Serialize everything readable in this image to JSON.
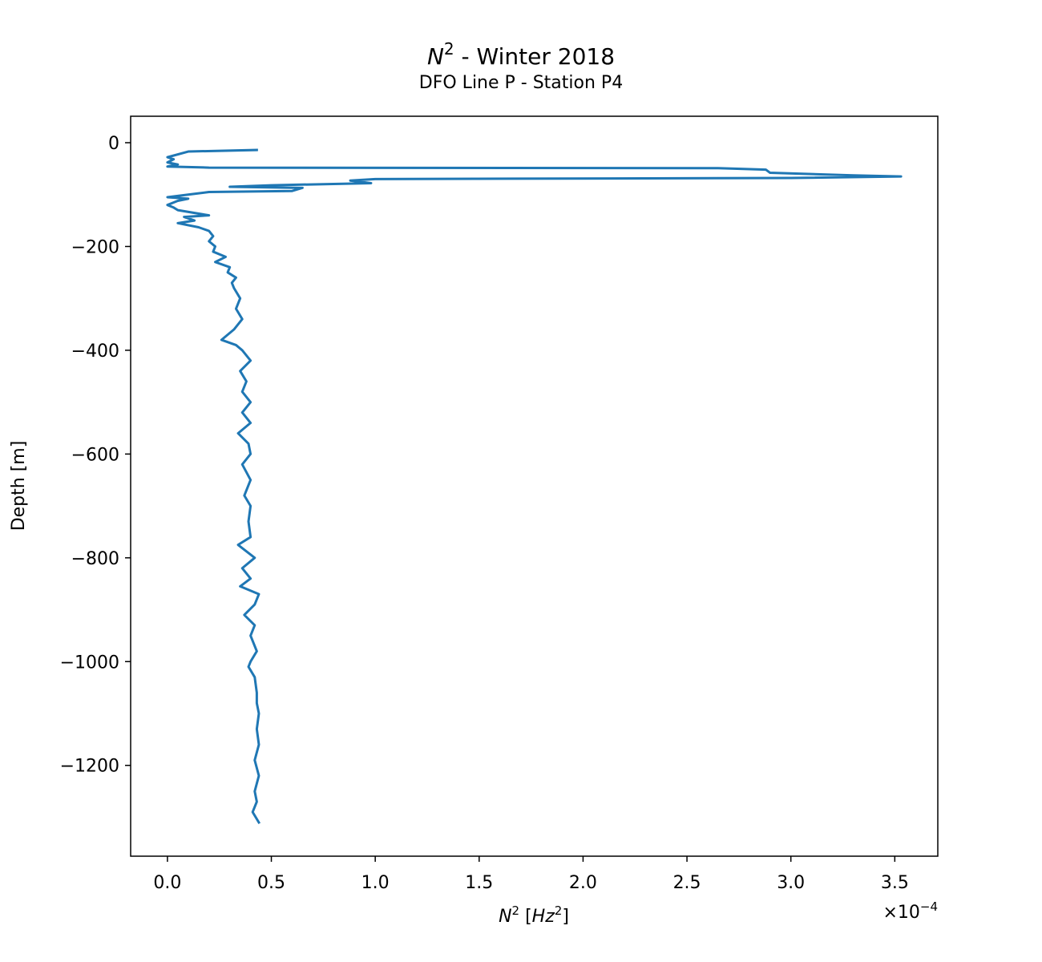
{
  "chart_data": {
    "type": "line",
    "title": [
      {
        "text": "N",
        "italic": true
      },
      {
        "text": "2",
        "sup": true
      },
      {
        "text": " - Winter 2018"
      }
    ],
    "subtitle": "DFO Line P - Station P4",
    "xlabel": [
      {
        "text": "N",
        "italic": true
      },
      {
        "text": "2",
        "sup": true
      },
      {
        "text": " ["
      },
      {
        "text": "Hz",
        "italic": true
      },
      {
        "text": "2",
        "sup": true
      },
      {
        "text": "]"
      }
    ],
    "ylabel": "Depth [m]",
    "x_offset": [
      {
        "text": "×10"
      },
      {
        "text": "−4",
        "sup": true
      }
    ],
    "xlim": [
      -0.177,
      3.707
    ],
    "ylim": [
      -1375,
      51
    ],
    "xticks": [
      {
        "value": 0,
        "label": "0.0"
      },
      {
        "value": 0.5,
        "label": "0.5"
      },
      {
        "value": 1,
        "label": "1.0"
      },
      {
        "value": 1.5,
        "label": "1.5"
      },
      {
        "value": 2,
        "label": "2.0"
      },
      {
        "value": 2.5,
        "label": "2.5"
      },
      {
        "value": 3,
        "label": "3.0"
      },
      {
        "value": 3.5,
        "label": "3.5"
      }
    ],
    "yticks": [
      0,
      {
        "value": -200,
        "label": "−200"
      },
      {
        "value": -400,
        "label": "−400"
      },
      {
        "value": -600,
        "label": "−600"
      },
      {
        "value": -800,
        "label": "−800"
      },
      {
        "value": -1000,
        "label": "−1000"
      },
      {
        "value": -1200,
        "label": "−1200"
      }
    ],
    "grid": false,
    "series": [
      {
        "color": "#1f77b4",
        "x": [
          0.43,
          0.1,
          0.0,
          0.03,
          0.0,
          0.05,
          0.0,
          0.2,
          2.65,
          2.88,
          2.9,
          3.3,
          3.53,
          3.0,
          1.0,
          0.88,
          0.98,
          0.5,
          0.3,
          0.65,
          0.6,
          0.2,
          0.1,
          0.0,
          0.1,
          0.05,
          0.0,
          0.03,
          0.05,
          0.2,
          0.08,
          0.13,
          0.05,
          0.15,
          0.2,
          0.22,
          0.2,
          0.23,
          0.22,
          0.28,
          0.23,
          0.3,
          0.29,
          0.33,
          0.31,
          0.32,
          0.35,
          0.33,
          0.36,
          0.32,
          0.26,
          0.33,
          0.36,
          0.4,
          0.35,
          0.38,
          0.36,
          0.4,
          0.36,
          0.4,
          0.34,
          0.39,
          0.4,
          0.36,
          0.4,
          0.37,
          0.4,
          0.39,
          0.4,
          0.34,
          0.42,
          0.36,
          0.4,
          0.35,
          0.44,
          0.42,
          0.37,
          0.42,
          0.4,
          0.43,
          0.4,
          0.39,
          0.42,
          0.43,
          0.43,
          0.44,
          0.43,
          0.44,
          0.42,
          0.44,
          0.42,
          0.43,
          0.41,
          0.44
        ],
        "values": [
          -14,
          -17,
          -28,
          -32,
          -38,
          -42,
          -46,
          -48,
          -49,
          -52,
          -58,
          -63,
          -65,
          -68,
          -70,
          -73,
          -78,
          -82,
          -85,
          -87,
          -93,
          -95,
          -100,
          -105,
          -108,
          -112,
          -120,
          -125,
          -130,
          -140,
          -143,
          -150,
          -155,
          -163,
          -170,
          -180,
          -190,
          -200,
          -210,
          -220,
          -230,
          -240,
          -250,
          -260,
          -270,
          -280,
          -300,
          -320,
          -340,
          -360,
          -380,
          -390,
          -400,
          -420,
          -440,
          -460,
          -480,
          -500,
          -520,
          -540,
          -560,
          -580,
          -600,
          -620,
          -650,
          -680,
          -700,
          -730,
          -760,
          -775,
          -800,
          -820,
          -840,
          -855,
          -870,
          -890,
          -910,
          -930,
          -950,
          -980,
          -1000,
          -1010,
          -1030,
          -1060,
          -1080,
          -1100,
          -1130,
          -1160,
          -1190,
          -1220,
          -1250,
          -1270,
          -1290,
          -1310
        ]
      }
    ]
  }
}
